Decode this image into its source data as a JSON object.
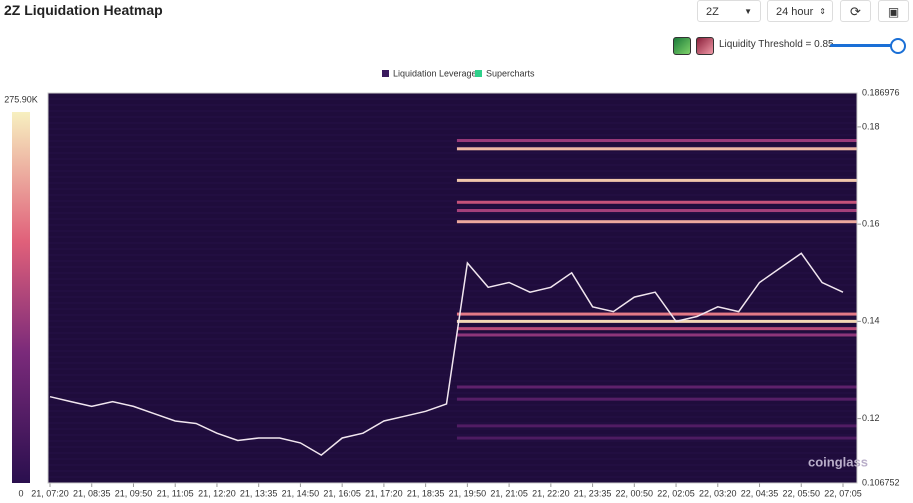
{
  "header": {
    "title": "2Z Liquidation Heatmap",
    "symbol": "2Z",
    "range": "24 hour",
    "threshold_label": "Liquidity Threshold = 0.85"
  },
  "legend": [
    "Liquidation Leverage",
    "Supercharts"
  ],
  "watermark": "coinglass",
  "chart_data": {
    "type": "line",
    "categories": [
      "21, 07:20",
      null,
      "21, 08:35",
      null,
      "21, 09:50",
      null,
      "21, 11:05",
      null,
      "21, 12:20",
      null,
      "21, 13:35",
      null,
      "21, 14:50",
      null,
      "21, 16:05",
      null,
      "21, 17:20",
      null,
      "21, 18:35",
      null,
      "21, 19:50",
      null,
      "21, 21:05",
      null,
      "21, 22:20",
      null,
      "21, 23:35",
      null,
      "22, 00:50",
      null,
      "22, 02:05",
      null,
      "22, 03:20",
      null,
      "22, 04:35",
      null,
      "22, 05:50",
      null,
      "22, 07:05"
    ],
    "series": [
      {
        "name": "Supercharts",
        "color": "#f1e6ef",
        "values": [
          0.1245,
          0.1235,
          0.1225,
          0.1235,
          0.1225,
          0.121,
          0.1195,
          0.119,
          0.117,
          0.1155,
          0.116,
          0.116,
          0.115,
          0.1125,
          0.116,
          0.117,
          0.1195,
          0.1205,
          0.1215,
          0.123,
          0.152,
          0.147,
          0.148,
          0.146,
          0.147,
          0.15,
          0.143,
          0.142,
          0.145,
          0.146,
          0.14,
          0.141,
          0.143,
          0.142,
          0.148,
          0.151,
          0.154,
          0.148,
          0.146
        ]
      }
    ],
    "levels": [
      {
        "price": 0.1772,
        "value": 120000
      },
      {
        "price": 0.1755,
        "value": 240000
      },
      {
        "price": 0.169,
        "value": 250000
      },
      {
        "price": 0.1645,
        "value": 160000
      },
      {
        "price": 0.1628,
        "value": 130000
      },
      {
        "price": 0.1605,
        "value": 230000
      },
      {
        "price": 0.1415,
        "value": 200000
      },
      {
        "price": 0.14,
        "value": 260000
      },
      {
        "price": 0.1385,
        "value": 150000
      },
      {
        "price": 0.1372,
        "value": 110000
      },
      {
        "price": 0.1265,
        "value": 60000
      },
      {
        "price": 0.124,
        "value": 50000
      },
      {
        "price": 0.1185,
        "value": 45000
      },
      {
        "price": 0.116,
        "value": 40000
      }
    ],
    "level_colors": [
      "#2a0f4e",
      "#7a2a7a",
      "#e0607a",
      "#f7f0c0"
    ],
    "colorbar": {
      "min": 0,
      "max": {
        "value": 275900,
        "label": "275.90K"
      }
    },
    "ylim": [
      0.106752,
      0.186976
    ],
    "yticks": [
      0.12,
      0.14,
      0.16,
      0.18
    ],
    "background": "#1f0c3c"
  }
}
